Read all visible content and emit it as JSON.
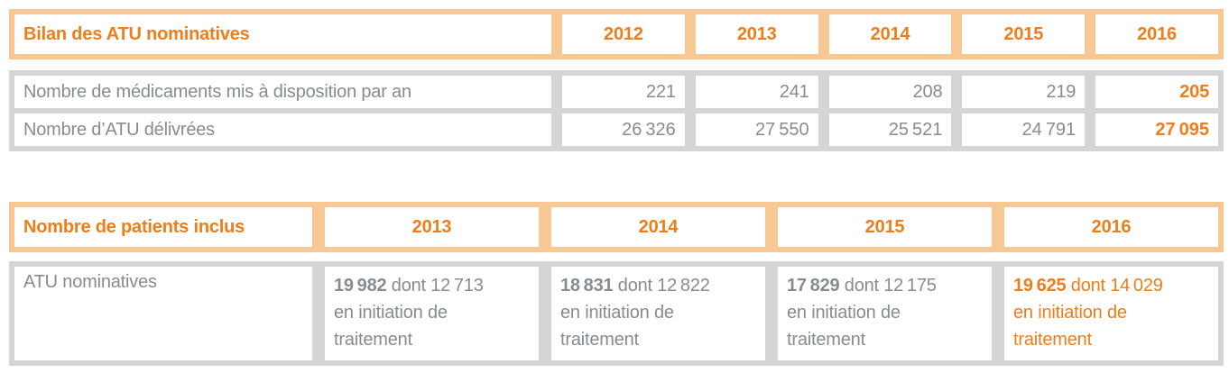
{
  "colors": {
    "accent_orange": "#ee7d1a",
    "header_band_peach": "#f8c894",
    "body_band_gray": "#d5d5d5",
    "body_text_gray": "#868c90",
    "cell_background": "#ffffff"
  },
  "table1": {
    "title": "Bilan des ATU nominatives",
    "years": [
      "2012",
      "2013",
      "2014",
      "2015",
      "2016"
    ],
    "rows": [
      {
        "label": "Nombre de médicaments mis à disposition par an",
        "values": [
          "221",
          "241",
          "208",
          "219",
          "205"
        ],
        "highlight_last": true
      },
      {
        "label": "Nombre d’ATU délivrées",
        "values": [
          "26 326",
          "27 550",
          "25 521",
          "24 791",
          "27 095"
        ],
        "highlight_last": true
      }
    ]
  },
  "table2": {
    "title": "Nombre de patients inclus",
    "years": [
      "2013",
      "2014",
      "2015",
      "2016"
    ],
    "row_label": "ATU nominatives",
    "cells": [
      {
        "total": "19 982",
        "rest": "dont 12 713",
        "line2": "en initiation de",
        "line3": "traitement",
        "highlight": false
      },
      {
        "total": "18 831",
        "rest": "dont 12 822",
        "line2": "en initiation de",
        "line3": "traitement",
        "highlight": false
      },
      {
        "total": "17 829",
        "rest": "dont 12 175",
        "line2": "en initiation de",
        "line3": "traitement",
        "highlight": false
      },
      {
        "total": "19 625",
        "rest": "dont 14 029",
        "line2": "en initiation de",
        "line3": "traitement",
        "highlight": true
      }
    ]
  }
}
